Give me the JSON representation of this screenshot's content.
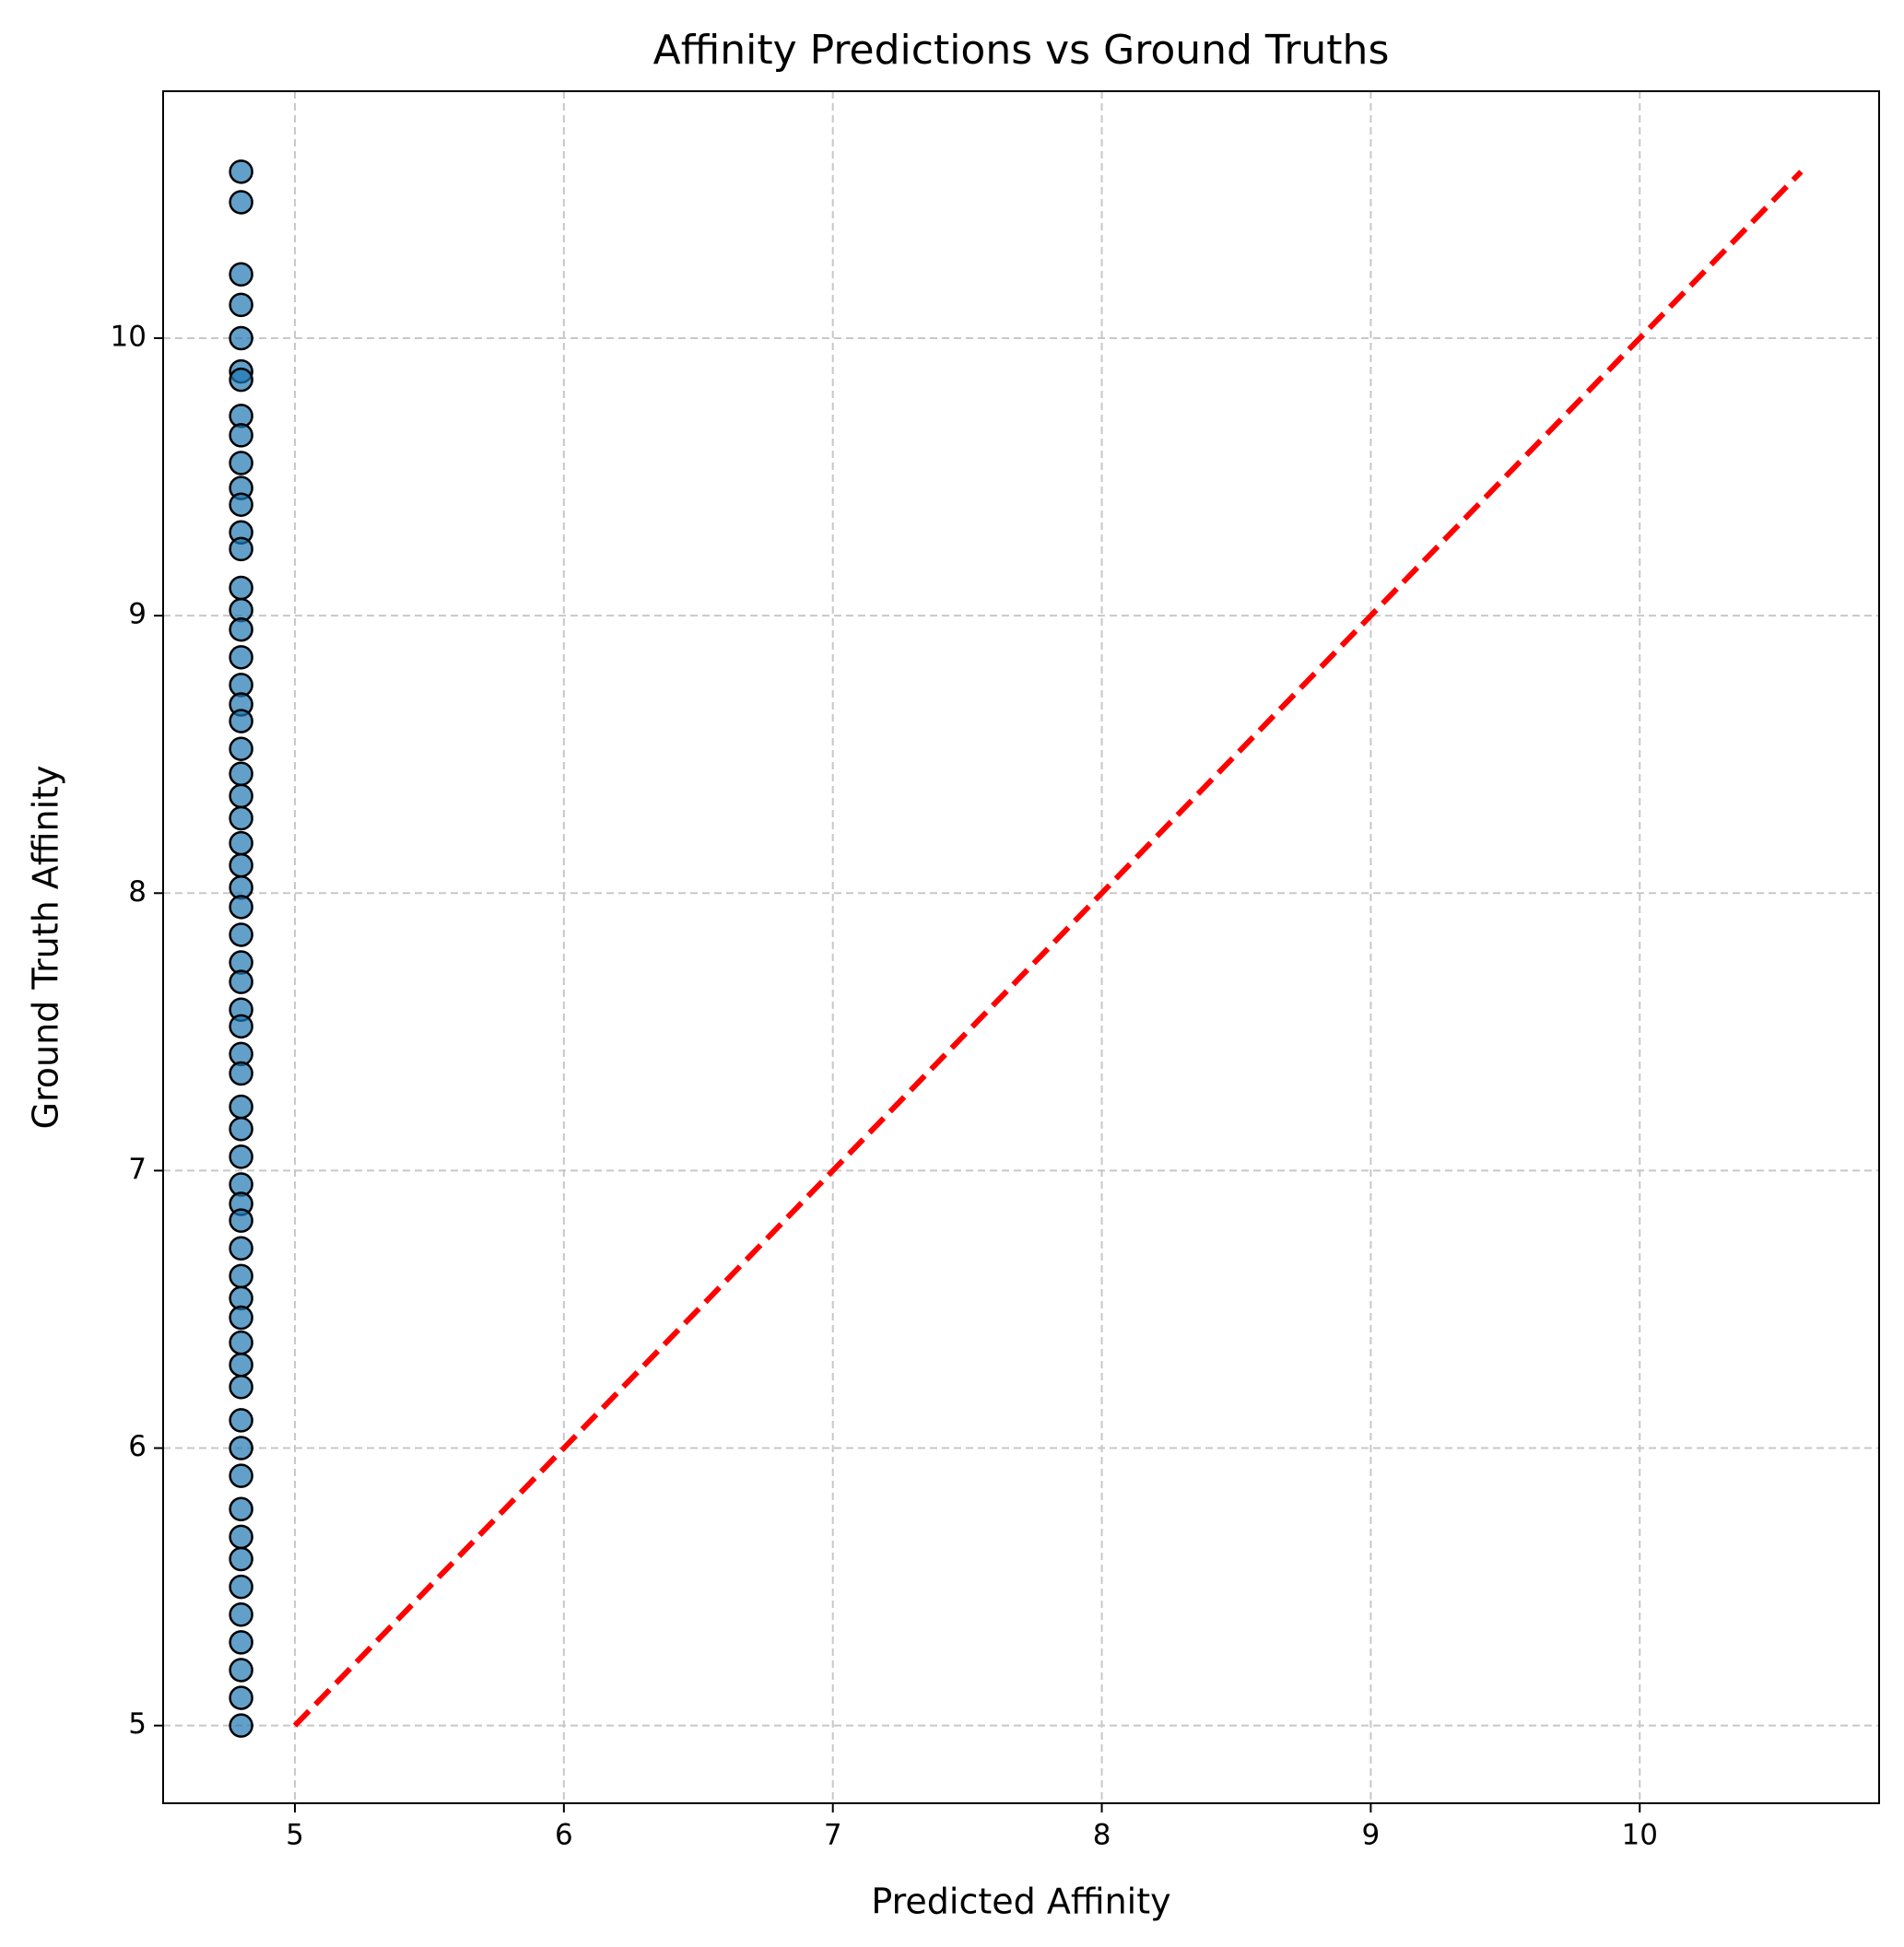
{
  "chart_data": {
    "type": "scatter",
    "title": "Affinity Predictions vs Ground Truths",
    "x_label": "Predicted Affinity",
    "y_label": "Ground Truth Affinity",
    "xlim": [
      4.51,
      10.89
    ],
    "ylim": [
      4.72,
      10.89
    ],
    "xticks": [
      5,
      6,
      7,
      8,
      9,
      10
    ],
    "yticks": [
      5,
      6,
      7,
      8,
      9,
      10
    ],
    "grid": true,
    "series": [
      {
        "type": "scatter",
        "color": "#1f77b4",
        "x": [
          4.8,
          4.8,
          4.8,
          4.8,
          4.8,
          4.8,
          4.8,
          4.8,
          4.8,
          4.8,
          4.8,
          4.8,
          4.8,
          4.8,
          4.8,
          4.8,
          4.8,
          4.8,
          4.8,
          4.8,
          4.8,
          4.8,
          4.8,
          4.8,
          4.8,
          4.8,
          4.8,
          4.8,
          4.8,
          4.8,
          4.8,
          4.8,
          4.8,
          4.8,
          4.8,
          4.8,
          4.8,
          4.8,
          4.8,
          4.8,
          4.8,
          4.8,
          4.8,
          4.8,
          4.8,
          4.8,
          4.8,
          4.8,
          4.8,
          4.8,
          4.8,
          4.8,
          4.8,
          4.8,
          4.8,
          4.8,
          4.8,
          4.8,
          4.8,
          4.8,
          4.8
        ],
        "values": [
          10.6,
          10.49,
          10.23,
          10.12,
          10.0,
          9.88,
          9.85,
          9.72,
          9.65,
          9.55,
          9.46,
          9.4,
          9.3,
          9.24,
          9.1,
          9.02,
          8.95,
          8.85,
          8.75,
          8.68,
          8.62,
          8.52,
          8.43,
          8.35,
          8.27,
          8.18,
          8.1,
          8.02,
          7.95,
          7.85,
          7.75,
          7.68,
          7.58,
          7.52,
          7.42,
          7.35,
          7.23,
          7.15,
          7.05,
          6.95,
          6.88,
          6.82,
          6.72,
          6.62,
          6.54,
          6.47,
          6.38,
          6.3,
          6.22,
          6.1,
          6.0,
          5.9,
          5.78,
          5.68,
          5.6,
          5.5,
          5.4,
          5.3,
          5.2,
          5.1,
          5.0
        ]
      },
      {
        "type": "line",
        "color": "#ff0000",
        "dashed": true,
        "x": [
          5,
          10.6
        ],
        "values": [
          5,
          10.6
        ]
      }
    ]
  }
}
